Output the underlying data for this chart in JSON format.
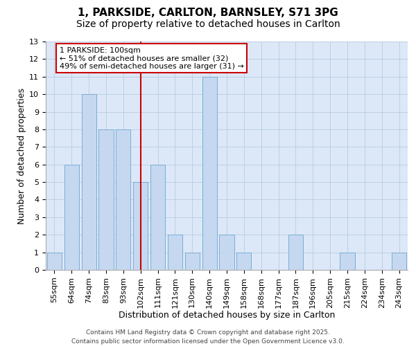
{
  "title_line1": "1, PARKSIDE, CARLTON, BARNSLEY, S71 3PG",
  "title_line2": "Size of property relative to detached houses in Carlton",
  "xlabel": "Distribution of detached houses by size in Carlton",
  "ylabel": "Number of detached properties",
  "categories": [
    "55sqm",
    "64sqm",
    "74sqm",
    "83sqm",
    "93sqm",
    "102sqm",
    "111sqm",
    "121sqm",
    "130sqm",
    "140sqm",
    "149sqm",
    "158sqm",
    "168sqm",
    "177sqm",
    "187sqm",
    "196sqm",
    "205sqm",
    "215sqm",
    "224sqm",
    "234sqm",
    "243sqm"
  ],
  "values": [
    1,
    6,
    10,
    8,
    8,
    5,
    6,
    2,
    1,
    11,
    2,
    1,
    0,
    0,
    2,
    0,
    0,
    1,
    0,
    0,
    1
  ],
  "bar_color": "#c5d8f0",
  "bar_edge_color": "#7aadd4",
  "ref_index": 5,
  "reference_line_color": "#cc0000",
  "annotation_text": "1 PARKSIDE: 100sqm\n← 51% of detached houses are smaller (32)\n49% of semi-detached houses are larger (31) →",
  "annotation_box_edgecolor": "#cc0000",
  "ylim_max": 13,
  "yticks": [
    0,
    1,
    2,
    3,
    4,
    5,
    6,
    7,
    8,
    9,
    10,
    11,
    12,
    13
  ],
  "background_color": "#dce8f8",
  "grid_color": "#b8ccdf",
  "footer_text": "Contains HM Land Registry data © Crown copyright and database right 2025.\nContains public sector information licensed under the Open Government Licence v3.0.",
  "title_fontsize": 11,
  "subtitle_fontsize": 10,
  "axis_label_fontsize": 9,
  "tick_fontsize": 8,
  "annotation_fontsize": 8,
  "footer_fontsize": 6.5
}
